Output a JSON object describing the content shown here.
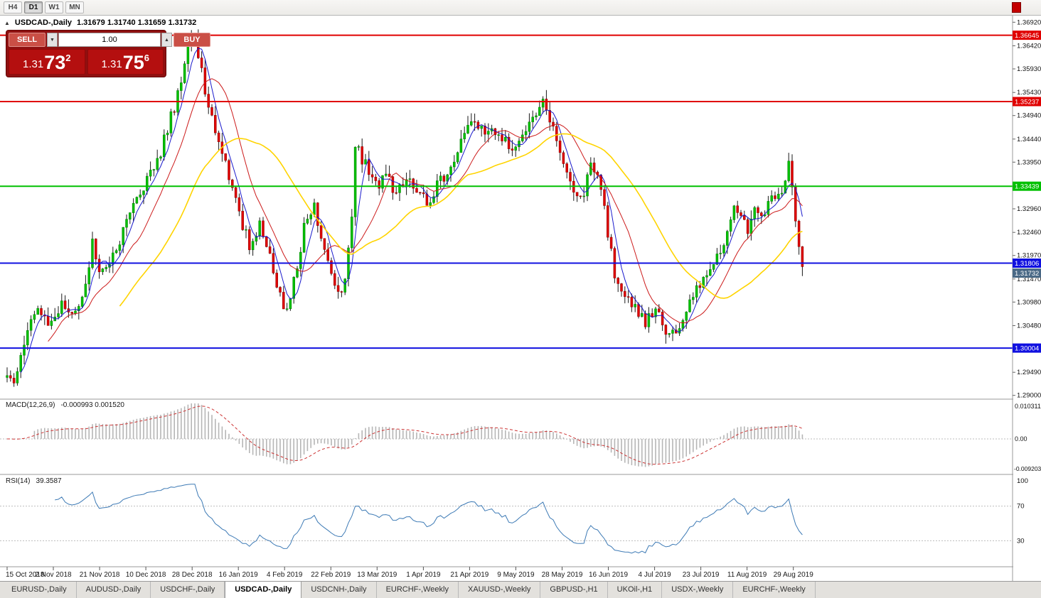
{
  "toolbar": {
    "timeframes": [
      {
        "label": "H4",
        "active": false
      },
      {
        "label": "D1",
        "active": true
      },
      {
        "label": "W1",
        "active": false
      },
      {
        "label": "MN",
        "active": false
      }
    ]
  },
  "chart_header": {
    "collapse_icon": "▲",
    "symbol": "USDCAD-,Daily",
    "ohlc_text": "1.31679 1.31740 1.31659 1.31732"
  },
  "trade_panel": {
    "sell_label": "SELL",
    "buy_label": "BUY",
    "volume": "1.00",
    "vol_down_icon": "▼",
    "vol_up_icon": "▲",
    "sell_price": {
      "base": "1.31",
      "big": "73",
      "sup": "2"
    },
    "buy_price": {
      "base": "1.31",
      "big": "75",
      "sup": "6"
    }
  },
  "chart_data": {
    "type": "candlestick",
    "symbol": "USDCAD-",
    "timeframe": "Daily",
    "ohlc_current": {
      "open": 1.31679,
      "high": 1.3174,
      "low": 1.31659,
      "close": 1.31732
    },
    "y_range": {
      "top": 1.3697,
      "bottom": 1.2895
    },
    "y_ticks": [
      "1.36920",
      "1.36420",
      "1.35930",
      "1.35430",
      "1.34940",
      "1.34440",
      "1.33950",
      "1.33450",
      "1.32960",
      "1.32460",
      "1.31970",
      "1.31470",
      "1.30980",
      "1.30480",
      "1.29990",
      "1.29490",
      "1.29000"
    ],
    "x_labels": [
      "15 Oct 2018",
      "2 Nov 2018",
      "21 Nov 2018",
      "10 Dec 2018",
      "28 Dec 2018",
      "16 Jan 2019",
      "4 Feb 2019",
      "22 Feb 2019",
      "13 Mar 2019",
      "1 Apr 2019",
      "21 Apr 2019",
      "9 May 2019",
      "28 May 2019",
      "16 Jun 2019",
      "4 Jul 2019",
      "23 Jul 2019",
      "11 Aug 2019",
      "29 Aug 2019"
    ],
    "levels": [
      {
        "price": 1.36645,
        "label": "1.36645",
        "color": "#e00000"
      },
      {
        "price": 1.35237,
        "label": "1.35237",
        "color": "#e00000"
      },
      {
        "price": 1.33439,
        "label": "1.33439",
        "color": "#00c000"
      },
      {
        "price": 1.31806,
        "label": "1.31806",
        "color": "#1010e0"
      },
      {
        "price": 1.30004,
        "label": "1.30004",
        "color": "#1010e0"
      }
    ],
    "current_price": {
      "value": "1.31732",
      "price": 1.31732,
      "color": "#4a6986"
    },
    "num_candles": 234,
    "candle_colors": {
      "up": "#00c000",
      "up_edge": "#008000",
      "down": "#e00000",
      "down_edge": "#8b0000",
      "wick": "#1a1a1a"
    },
    "price_path": [
      [
        0,
        1.295
      ],
      [
        2,
        1.2932
      ],
      [
        4,
        1.299
      ],
      [
        7,
        1.306
      ],
      [
        10,
        1.3078
      ],
      [
        13,
        1.3052
      ],
      [
        16,
        1.3095
      ],
      [
        19,
        1.307
      ],
      [
        22,
        1.311
      ],
      [
        25,
        1.322
      ],
      [
        27,
        1.316
      ],
      [
        30,
        1.3185
      ],
      [
        33,
        1.323
      ],
      [
        36,
        1.329
      ],
      [
        39,
        1.332
      ],
      [
        42,
        1.338
      ],
      [
        45,
        1.342
      ],
      [
        48,
        1.349
      ],
      [
        51,
        1.356
      ],
      [
        53,
        1.364
      ],
      [
        55,
        1.3655
      ],
      [
        57,
        1.36
      ],
      [
        59,
        1.3505
      ],
      [
        62,
        1.345
      ],
      [
        65,
        1.337
      ],
      [
        68,
        1.328
      ],
      [
        71,
        1.322
      ],
      [
        74,
        1.326
      ],
      [
        77,
        1.319
      ],
      [
        80,
        1.312
      ],
      [
        82,
        1.3072
      ],
      [
        85,
        1.318
      ],
      [
        87,
        1.3255
      ],
      [
        90,
        1.33
      ],
      [
        92,
        1.324
      ],
      [
        95,
        1.3155
      ],
      [
        97,
        1.3115
      ],
      [
        99,
        1.3145
      ],
      [
        101,
        1.329
      ],
      [
        102,
        1.343
      ],
      [
        105,
        1.339
      ],
      [
        108,
        1.3345
      ],
      [
        111,
        1.337
      ],
      [
        114,
        1.333
      ],
      [
        117,
        1.3355
      ],
      [
        120,
        1.334
      ],
      [
        123,
        1.331
      ],
      [
        126,
        1.3345
      ],
      [
        129,
        1.3375
      ],
      [
        131,
        1.3405
      ],
      [
        134,
        1.3465
      ],
      [
        137,
        1.3485
      ],
      [
        140,
        1.3445
      ],
      [
        143,
        1.3465
      ],
      [
        146,
        1.3435
      ],
      [
        149,
        1.3425
      ],
      [
        152,
        1.3455
      ],
      [
        155,
        1.3495
      ],
      [
        157,
        1.352
      ],
      [
        159,
        1.348
      ],
      [
        162,
        1.3415
      ],
      [
        165,
        1.335
      ],
      [
        167,
        1.3315
      ],
      [
        169,
        1.333
      ],
      [
        171,
        1.34
      ],
      [
        173,
        1.336
      ],
      [
        175,
        1.329
      ],
      [
        178,
        1.316
      ],
      [
        181,
        1.31
      ],
      [
        184,
        1.3085
      ],
      [
        187,
        1.3055
      ],
      [
        190,
        1.3085
      ],
      [
        193,
        1.3035
      ],
      [
        196,
        1.3028
      ],
      [
        199,
        1.3075
      ],
      [
        202,
        1.3125
      ],
      [
        205,
        1.3165
      ],
      [
        208,
        1.32
      ],
      [
        211,
        1.324
      ],
      [
        213,
        1.33
      ],
      [
        215,
        1.328
      ],
      [
        217,
        1.3255
      ],
      [
        219,
        1.329
      ],
      [
        221,
        1.3275
      ],
      [
        223,
        1.33
      ],
      [
        225,
        1.332
      ],
      [
        227,
        1.334
      ],
      [
        229,
        1.3385
      ],
      [
        231,
        1.328
      ],
      [
        232,
        1.3215
      ],
      [
        233,
        1.3173
      ]
    ],
    "moving_averages": [
      {
        "name": "fast-ma",
        "period": 5,
        "color": "#1a1acc",
        "width": 1
      },
      {
        "name": "medium-ma",
        "period": 13,
        "color": "#cc1a1a",
        "width": 1
      },
      {
        "name": "slow-ma",
        "period": 34,
        "color": "#ffd400",
        "width": 1.6
      }
    ],
    "macd": {
      "label": "MACD(12,26,9)",
      "values_text": "-0.000993 0.001520",
      "params": [
        12,
        26,
        9
      ],
      "scale_max": "0.010311",
      "scale_zero": "0.00",
      "scale_min": "-0.0092030",
      "hist_color": "#b6b6b6",
      "signal_color": "#cc3333"
    },
    "rsi": {
      "label": "RSI(14)",
      "value_text": "39.3587",
      "period": 14,
      "levels": [
        70,
        30
      ],
      "scale_labels": [
        "100",
        "70",
        "30"
      ],
      "line_color": "#3d7ab5"
    }
  },
  "tabs": [
    {
      "label": "EURUSD-,Daily",
      "active": false
    },
    {
      "label": "AUDUSD-,Daily",
      "active": false
    },
    {
      "label": "USDCHF-,Daily",
      "active": false
    },
    {
      "label": "USDCAD-,Daily",
      "active": true
    },
    {
      "label": "USDCNH-,Daily",
      "active": false
    },
    {
      "label": "EURCHF-,Weekly",
      "active": false
    },
    {
      "label": "XAUUSD-,Weekly",
      "active": false
    },
    {
      "label": "GBPUSD-,H1",
      "active": false
    },
    {
      "label": "UKOil-,H1",
      "active": false
    },
    {
      "label": "USDX-,Weekly",
      "active": false
    },
    {
      "label": "EURCHF-,Weekly",
      "active": false
    }
  ]
}
